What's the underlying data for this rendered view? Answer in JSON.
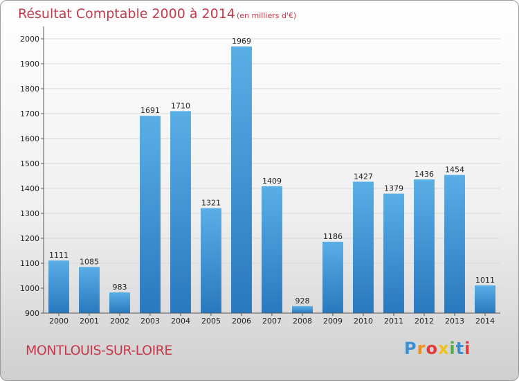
{
  "chart_data": {
    "type": "bar",
    "title": "Résultat Comptable 2000 à 2014",
    "subtitle": "(en milliers d'€)",
    "categories": [
      "2000",
      "2001",
      "2002",
      "2003",
      "2004",
      "2005",
      "2006",
      "2007",
      "2008",
      "2009",
      "2010",
      "2011",
      "2012",
      "2013",
      "2014"
    ],
    "values": [
      1111,
      1085,
      983,
      1691,
      1710,
      1321,
      1969,
      1409,
      928,
      1186,
      1427,
      1379,
      1436,
      1454,
      1011
    ],
    "yticks": [
      900,
      1000,
      1100,
      1200,
      1300,
      1400,
      1500,
      1600,
      1700,
      1800,
      1900,
      2000
    ],
    "ylim": [
      900,
      2050
    ],
    "xlabel": "",
    "ylabel": "",
    "grid": true
  },
  "commune": "MONTLOUIS-SUR-LOIRE",
  "brand": {
    "letters": [
      "P",
      "r",
      "o",
      "x",
      "i",
      "t",
      "i"
    ],
    "colors": [
      "#3c8fd0",
      "#f18f1c",
      "#e23b3b",
      "#f2c21a",
      "#4fae45",
      "#3c8fd0",
      "#e23b3b"
    ]
  },
  "colors": {
    "accent": "#c43a4a",
    "bar_light": "#5aaee6",
    "bar_dark": "#2a78bd"
  }
}
